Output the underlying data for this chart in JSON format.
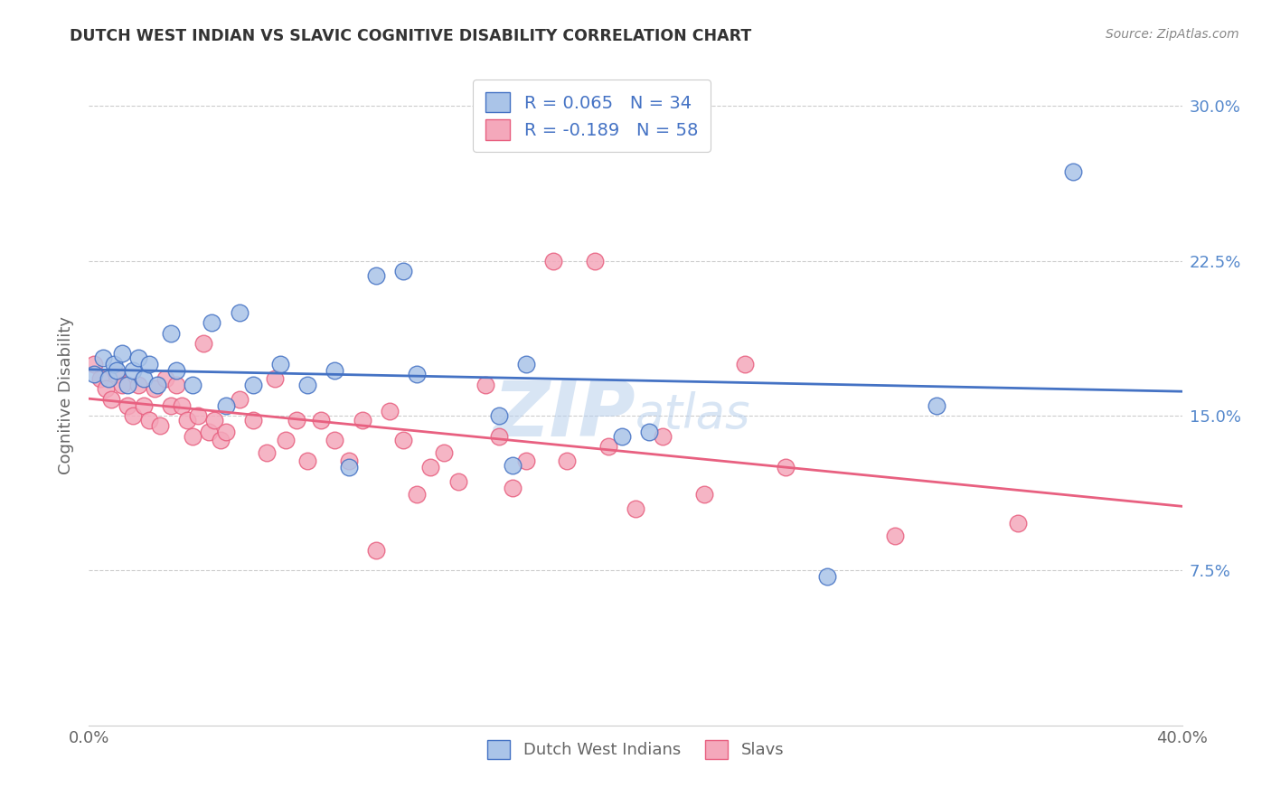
{
  "title": "DUTCH WEST INDIAN VS SLAVIC COGNITIVE DISABILITY CORRELATION CHART",
  "source": "Source: ZipAtlas.com",
  "ylabel": "Cognitive Disability",
  "xmin": 0.0,
  "xmax": 0.4,
  "ymin": 0.0,
  "ymax": 0.32,
  "yticks": [
    0.075,
    0.15,
    0.225,
    0.3
  ],
  "ytick_labels": [
    "7.5%",
    "15.0%",
    "22.5%",
    "30.0%"
  ],
  "xticks": [
    0.0,
    0.1,
    0.2,
    0.3,
    0.4
  ],
  "legend_label1": "Dutch West Indians",
  "legend_label2": "Slavs",
  "R1": 0.065,
  "N1": 34,
  "R2": -0.189,
  "N2": 58,
  "color_blue": "#aac4e8",
  "color_pink": "#f4a8bb",
  "line_color_blue": "#4472C4",
  "line_color_pink": "#E86080",
  "dutch_x": [
    0.002,
    0.005,
    0.007,
    0.009,
    0.01,
    0.012,
    0.014,
    0.016,
    0.018,
    0.02,
    0.022,
    0.025,
    0.03,
    0.032,
    0.038,
    0.045,
    0.05,
    0.055,
    0.06,
    0.07,
    0.08,
    0.09,
    0.095,
    0.105,
    0.115,
    0.12,
    0.15,
    0.155,
    0.16,
    0.195,
    0.205,
    0.27,
    0.31,
    0.36
  ],
  "dutch_y": [
    0.17,
    0.178,
    0.168,
    0.175,
    0.172,
    0.18,
    0.165,
    0.172,
    0.178,
    0.168,
    0.175,
    0.165,
    0.19,
    0.172,
    0.165,
    0.195,
    0.155,
    0.2,
    0.165,
    0.175,
    0.165,
    0.172,
    0.125,
    0.218,
    0.22,
    0.17,
    0.15,
    0.126,
    0.175,
    0.14,
    0.142,
    0.072,
    0.155,
    0.268
  ],
  "slavic_x": [
    0.002,
    0.004,
    0.006,
    0.008,
    0.01,
    0.012,
    0.014,
    0.016,
    0.018,
    0.02,
    0.022,
    0.024,
    0.026,
    0.028,
    0.03,
    0.032,
    0.034,
    0.036,
    0.038,
    0.04,
    0.042,
    0.044,
    0.046,
    0.048,
    0.05,
    0.055,
    0.06,
    0.065,
    0.068,
    0.072,
    0.076,
    0.08,
    0.085,
    0.09,
    0.095,
    0.1,
    0.105,
    0.11,
    0.115,
    0.12,
    0.125,
    0.13,
    0.135,
    0.145,
    0.15,
    0.155,
    0.16,
    0.17,
    0.175,
    0.185,
    0.19,
    0.2,
    0.21,
    0.225,
    0.24,
    0.255,
    0.295,
    0.34
  ],
  "slavic_y": [
    0.175,
    0.168,
    0.163,
    0.158,
    0.17,
    0.165,
    0.155,
    0.15,
    0.165,
    0.155,
    0.148,
    0.163,
    0.145,
    0.168,
    0.155,
    0.165,
    0.155,
    0.148,
    0.14,
    0.15,
    0.185,
    0.142,
    0.148,
    0.138,
    0.142,
    0.158,
    0.148,
    0.132,
    0.168,
    0.138,
    0.148,
    0.128,
    0.148,
    0.138,
    0.128,
    0.148,
    0.085,
    0.152,
    0.138,
    0.112,
    0.125,
    0.132,
    0.118,
    0.165,
    0.14,
    0.115,
    0.128,
    0.225,
    0.128,
    0.225,
    0.135,
    0.105,
    0.14,
    0.112,
    0.175,
    0.125,
    0.092,
    0.098
  ],
  "watermark_zip": "ZIP",
  "watermark_atlas": "atlas",
  "background_color": "#ffffff",
  "grid_color": "#cccccc",
  "title_color": "#333333",
  "source_color": "#888888",
  "ylabel_color": "#666666",
  "tick_label_color": "#666666",
  "right_tick_color": "#5588CC"
}
